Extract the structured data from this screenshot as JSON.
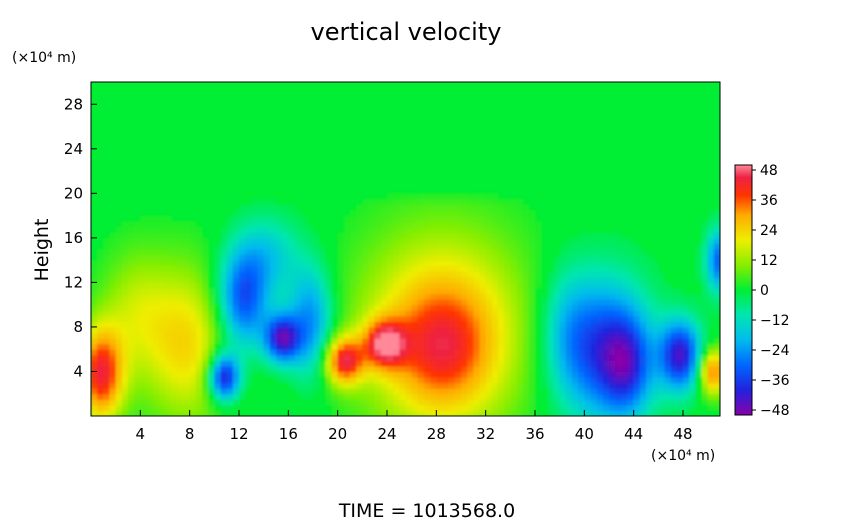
{
  "chart_data": {
    "type": "heatmap",
    "title": "vertical velocity",
    "ylabel": "Height",
    "y_unit_label": "(×10⁴ m)",
    "x_unit_label": "(×10⁴ m)",
    "x_ticks": [
      4,
      8,
      12,
      16,
      20,
      24,
      28,
      32,
      36,
      40,
      44,
      48
    ],
    "y_ticks": [
      4,
      8,
      12,
      16,
      20,
      24,
      28
    ],
    "xlim": [
      0,
      51
    ],
    "ylim": [
      0,
      30
    ],
    "colorbar": {
      "ticks": [
        48,
        36,
        24,
        12,
        0,
        -12,
        -24,
        -36,
        -48
      ],
      "labels": [
        "48",
        "36",
        "24",
        "12",
        "0",
        "−12",
        "−24",
        "−36",
        "−48"
      ],
      "range": [
        -48,
        48
      ]
    },
    "features": [
      {
        "x": 0.8,
        "y": 3.8,
        "sx": 1.3,
        "sy": 3.0,
        "value": 40
      },
      {
        "x": 7.8,
        "y": 6.5,
        "sx": 2.6,
        "sy": 5.0,
        "value": 22
      },
      {
        "x": 3.5,
        "y": 9.5,
        "sx": 2.0,
        "sy": 4.0,
        "value": 12
      },
      {
        "x": 10.8,
        "y": 3.5,
        "sx": 0.9,
        "sy": 1.5,
        "value": -44
      },
      {
        "x": 12.3,
        "y": 10.5,
        "sx": 1.5,
        "sy": 3.2,
        "value": -34
      },
      {
        "x": 15.5,
        "y": 7.0,
        "sx": 1.0,
        "sy": 1.5,
        "value": -40
      },
      {
        "x": 17.8,
        "y": 8.5,
        "sx": 1.3,
        "sy": 3.5,
        "value": -26
      },
      {
        "x": 14.5,
        "y": 14.5,
        "sx": 1.8,
        "sy": 2.5,
        "value": -14
      },
      {
        "x": 20.5,
        "y": 5.0,
        "sx": 1.1,
        "sy": 1.5,
        "value": 38
      },
      {
        "x": 23.8,
        "y": 6.5,
        "sx": 1.2,
        "sy": 1.5,
        "value": 34
      },
      {
        "x": 28.5,
        "y": 7.5,
        "sx": 4.8,
        "sy": 6.5,
        "value": 28
      },
      {
        "x": 28.5,
        "y": 6.0,
        "sx": 2.6,
        "sy": 3.5,
        "value": 16
      },
      {
        "x": 41.5,
        "y": 6.0,
        "sx": 2.6,
        "sy": 4.5,
        "value": -34
      },
      {
        "x": 43.5,
        "y": 4.5,
        "sx": 1.4,
        "sy": 3.0,
        "value": -22
      },
      {
        "x": 47.8,
        "y": 5.5,
        "sx": 1.2,
        "sy": 2.2,
        "value": -40
      },
      {
        "x": 50.4,
        "y": 4.0,
        "sx": 0.8,
        "sy": 1.5,
        "value": 34
      },
      {
        "x": 51.0,
        "y": 14.0,
        "sx": 0.8,
        "sy": 2.0,
        "value": -30
      },
      {
        "x": 38.5,
        "y": 8.0,
        "sx": 1.5,
        "sy": 4.0,
        "value": -10
      }
    ]
  },
  "footer": {
    "time_label": "TIME  =  1013568.0"
  }
}
